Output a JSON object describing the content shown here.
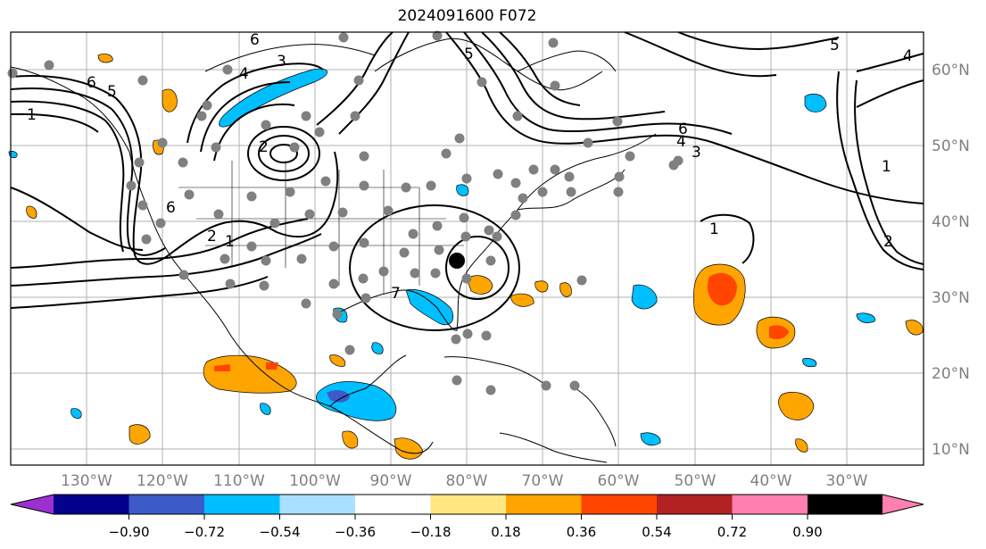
{
  "title": "2024091600 F072",
  "map": {
    "lon_labels": [
      "130°W",
      "120°W",
      "110°W",
      "100°W",
      "90°W",
      "80°W",
      "70°W",
      "60°W",
      "50°W",
      "40°W",
      "30°W"
    ],
    "lat_labels": [
      "60°N",
      "50°N",
      "40°N",
      "30°N",
      "20°N",
      "10°N"
    ],
    "contour_labels": [
      "6",
      "5",
      "1",
      "4",
      "3",
      "6",
      "2",
      "6",
      "2",
      "1",
      "7",
      "5",
      "6",
      "4",
      "3",
      "5",
      "4",
      "1",
      "1",
      "2"
    ],
    "marker": "storm-center"
  },
  "colorbar": {
    "colors": [
      "#9b30d0",
      "#00008b",
      "#3c5ac8",
      "#00bfff",
      "#aae0ff",
      "#ffffff",
      "#ffe680",
      "#ffa500",
      "#ff4500",
      "#b22222",
      "#ff80b0"
    ],
    "tick_labels": [
      "−0.90",
      "−0.72",
      "−0.54",
      "−0.36",
      "−0.18",
      "0.18",
      "0.36",
      "0.54",
      "0.72",
      "0.90"
    ]
  }
}
